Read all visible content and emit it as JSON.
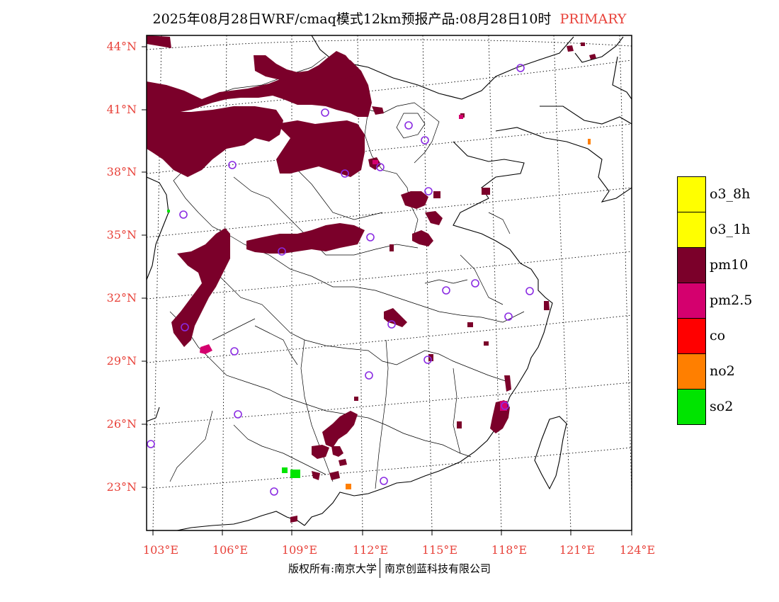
{
  "title": {
    "main": "2025年08月28日WRF/cmaq模式12km预报产品:08月28日10时",
    "tag": "PRIMARY"
  },
  "lat_labels": [
    "44°N",
    "41°N",
    "38°N",
    "35°N",
    "32°N",
    "29°N",
    "26°N",
    "23°N"
  ],
  "lon_labels": [
    "103°E",
    "106°E",
    "109°E",
    "112°E",
    "115°E",
    "118°E",
    "121°E",
    "124°E"
  ],
  "legend": [
    {
      "label": "o3_8h",
      "color": "#ffff00"
    },
    {
      "label": "o3_1h",
      "color": "#ffff00"
    },
    {
      "label": "pm10",
      "color": "#7b002a"
    },
    {
      "label": "pm2.5",
      "color": "#d4006e"
    },
    {
      "label": "co",
      "color": "#ff0000"
    },
    {
      "label": "no2",
      "color": "#ff7f00"
    },
    {
      "label": "so2",
      "color": "#00e400"
    }
  ],
  "colors": {
    "label_red": "#e8423a",
    "station_marker": "#8a2be2",
    "pm10": "#7b002a",
    "pm25": "#d4006e",
    "no2": "#ff7f00",
    "so2": "#00e400"
  },
  "footer": {
    "left": "版权所有:南京大学",
    "right": "南京创蓝科技有限公司"
  }
}
